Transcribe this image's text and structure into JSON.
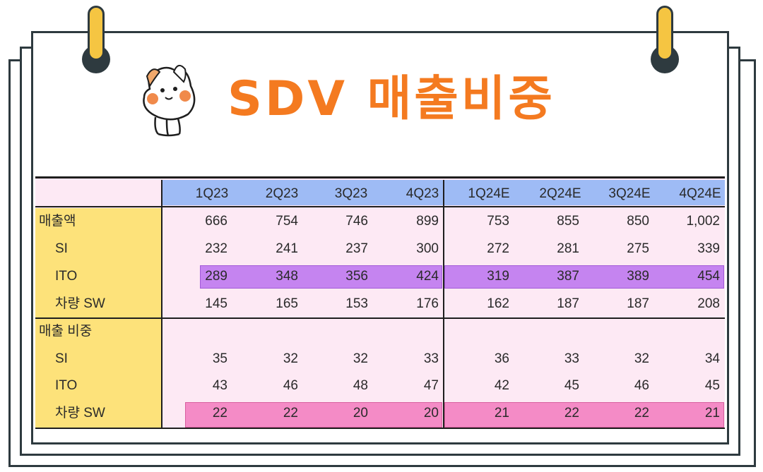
{
  "title": "SDV 매출비중",
  "icons": {
    "mascot": "cat-mascot-icon"
  },
  "colors": {
    "title": "#f47a20",
    "header": "#9ebbf5",
    "label_column": "#fde27a",
    "table_bg": "#fde9f4",
    "ito_highlight": "#c584f0",
    "vehicle_sw_highlight": "#f48bc6"
  },
  "chart_data": {
    "type": "table",
    "columns": [
      "1Q23",
      "2Q23",
      "3Q23",
      "4Q23",
      "1Q24E",
      "2Q24E",
      "3Q24E",
      "4Q24E"
    ],
    "rows": [
      {
        "label": "매출액",
        "values": [
          "666",
          "754",
          "746",
          "899",
          "753",
          "855",
          "850",
          "1,002"
        ]
      },
      {
        "label": "SI",
        "values": [
          "232",
          "241",
          "237",
          "300",
          "272",
          "281",
          "275",
          "339"
        ]
      },
      {
        "label": "ITO",
        "values": [
          "289",
          "348",
          "356",
          "424",
          "319",
          "387",
          "389",
          "454"
        ]
      },
      {
        "label": "차량 SW",
        "values": [
          "145",
          "165",
          "153",
          "176",
          "162",
          "187",
          "187",
          "208"
        ]
      },
      {
        "label": "매출 비중",
        "values": [
          "",
          "",
          "",
          "",
          "",
          "",
          "",
          ""
        ]
      },
      {
        "label": "SI",
        "values": [
          "35",
          "32",
          "32",
          "33",
          "36",
          "33",
          "32",
          "34"
        ]
      },
      {
        "label": "ITO",
        "values": [
          "43",
          "46",
          "48",
          "47",
          "42",
          "45",
          "46",
          "45"
        ]
      },
      {
        "label": "차량 SW",
        "values": [
          "22",
          "22",
          "20",
          "20",
          "21",
          "22",
          "22",
          "21"
        ]
      }
    ]
  }
}
